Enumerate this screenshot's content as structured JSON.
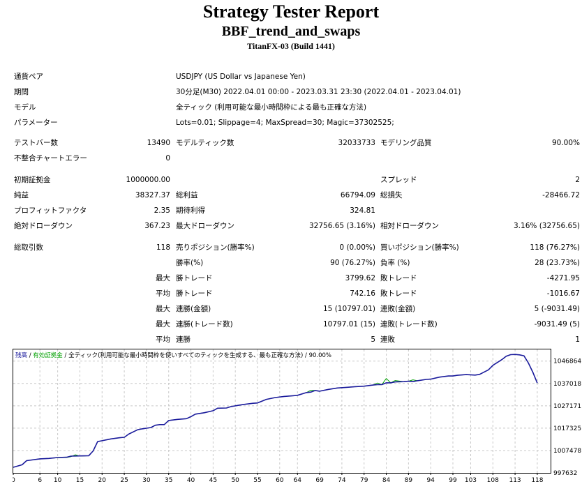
{
  "header": {
    "title": "Strategy Tester Report",
    "subtitle": "BBF_trend_and_swaps",
    "build": "TitanFX-03 (Build 1441)"
  },
  "info": {
    "symbol_label": "通貨ペア",
    "symbol_value": "USDJPY (US Dollar vs Japanese Yen)",
    "period_label": "期間",
    "period_value": "30分足(M30) 2022.04.01 00:00 - 2023.03.31 23:30 (2022.04.01 - 2023.04.01)",
    "model_label": "モデル",
    "model_value": "全ティック (利用可能な最小時間枠による最も正確な方法)",
    "params_label": "パラメーター",
    "params_value": "Lots=0.01; Slippage=4; MaxSpread=30; Magic=37302525;"
  },
  "stats": {
    "bars_label": "テストバー数",
    "bars_value": "13490",
    "ticks_label": "モデルティック数",
    "ticks_value": "32033733",
    "quality_label": "モデリング品質",
    "quality_value": "90.00%",
    "mismatch_label": "不整合チャートエラー",
    "mismatch_value": "0",
    "deposit_label": "初期証拠金",
    "deposit_value": "1000000.00",
    "spread_label": "スプレッド",
    "spread_value": "2",
    "net_label": "純益",
    "net_value": "38327.37",
    "gross_profit_label": "総利益",
    "gross_profit_value": "66794.09",
    "gross_loss_label": "総損失",
    "gross_loss_value": "-28466.72",
    "pf_label": "プロフィットファクタ",
    "pf_value": "2.35",
    "expected_label": "期待利得",
    "expected_value": "324.81",
    "abs_dd_label": "絶対ドローダウン",
    "abs_dd_value": "367.23",
    "max_dd_label": "最大ドローダウン",
    "max_dd_value": "32756.65 (3.16%)",
    "rel_dd_label": "相対ドローダウン",
    "rel_dd_value": "3.16% (32756.65)",
    "total_trades_label": "総取引数",
    "total_trades_value": "118",
    "short_label": "売りポジション(勝率%)",
    "short_value": "0 (0.00%)",
    "long_label": "買いポジション(勝率%)",
    "long_value": "118 (76.27%)",
    "win_rate_label": "勝率(%)",
    "win_rate_value": "90 (76.27%)",
    "loss_rate_label": "負率 (%)",
    "loss_rate_value": "28 (23.73%)",
    "max1": "最大",
    "largest_win_label": "勝トレード",
    "largest_win_value": "3799.62",
    "largest_loss_label": "敗トレード",
    "largest_loss_value": "-4271.95",
    "avg1": "平均",
    "avg_win_label": "勝トレード",
    "avg_win_value": "742.16",
    "avg_loss_label": "敗トレード",
    "avg_loss_value": "-1016.67",
    "max2": "最大",
    "cons_wins_money_label": "連勝(金額)",
    "cons_wins_money_value": "15 (10797.01)",
    "cons_loss_money_label": "連敗(金額)",
    "cons_loss_money_value": "5 (-9031.49)",
    "max3": "最大",
    "cons_profit_label": "連勝(トレード数)",
    "cons_profit_value": "10797.01 (15)",
    "cons_loss_label": "連敗(トレード数)",
    "cons_loss_value": "-9031.49 (5)",
    "avg2": "平均",
    "avg_cons_wins_label": "連勝",
    "avg_cons_wins_value": "5",
    "avg_cons_loss_label": "連敗",
    "avg_cons_loss_value": "1"
  },
  "chart_data": {
    "type": "line",
    "legend": {
      "balance": "残高",
      "sep1": " / ",
      "equity": "有効証拠金",
      "sep2": " / ",
      "model": "全ティック(利用可能な最小時間枠を使いすべてのティックを生成する、最も正確な方法)",
      "sep3": " / ",
      "quality": "90.00%"
    },
    "x_ticks": [
      "0",
      "6",
      "10",
      "15",
      "20",
      "25",
      "30",
      "35",
      "40",
      "45",
      "50",
      "55",
      "60",
      "64",
      "69",
      "74",
      "79",
      "84",
      "89",
      "94",
      "99",
      "103",
      "108",
      "113",
      "118"
    ],
    "y_ticks": [
      "1046864",
      "1037018",
      "1027171",
      "1017325",
      "1007478",
      "997632"
    ],
    "ylim": [
      997632,
      1052000
    ],
    "xlim": [
      0,
      121
    ],
    "colors": {
      "balance": "#1a1a9c",
      "equity": "#00a000",
      "grid": "#c8c8c8"
    },
    "series": [
      {
        "name": "残高",
        "x": [
          0,
          2,
          3,
          6,
          8,
          10,
          12,
          13,
          15,
          17,
          18,
          19,
          20,
          22,
          24,
          25,
          26,
          28,
          29,
          31,
          32,
          33,
          34,
          35,
          37,
          39,
          40,
          41,
          43,
          45,
          46,
          48,
          49,
          51,
          52,
          54,
          55,
          57,
          59,
          61,
          63,
          64,
          66,
          67,
          68,
          69,
          71,
          73,
          75,
          77,
          79,
          81,
          82,
          83,
          84,
          85,
          86,
          88,
          89,
          90,
          91,
          93,
          94,
          96,
          98,
          99,
          100,
          102,
          104,
          105,
          107,
          108,
          110,
          111,
          112,
          113,
          114,
          115,
          116,
          117,
          118
        ],
        "y": [
          1000100,
          1001200,
          1003000,
          1003800,
          1004000,
          1004400,
          1004500,
          1005000,
          1005100,
          1005200,
          1007300,
          1011400,
          1011800,
          1012600,
          1013100,
          1013300,
          1014700,
          1016600,
          1017000,
          1017600,
          1018600,
          1018900,
          1018900,
          1020700,
          1021200,
          1021500,
          1022400,
          1023500,
          1024100,
          1025000,
          1026100,
          1026200,
          1026800,
          1027500,
          1027800,
          1028300,
          1028400,
          1030000,
          1030800,
          1031300,
          1031600,
          1031800,
          1033000,
          1033200,
          1033900,
          1033600,
          1034400,
          1035000,
          1035300,
          1035600,
          1035800,
          1036300,
          1036500,
          1036500,
          1037300,
          1037300,
          1037700,
          1037800,
          1038000,
          1037800,
          1038200,
          1038800,
          1038900,
          1039800,
          1040300,
          1040300,
          1040600,
          1040900,
          1040700,
          1041000,
          1043000,
          1045000,
          1047500,
          1049000,
          1049700,
          1049800,
          1049600,
          1049200,
          1046000,
          1042000,
          1037200
        ]
      },
      {
        "name": "有効証拠金",
        "x": [
          0,
          2,
          3,
          6,
          8,
          10,
          12,
          13,
          14,
          15,
          17,
          18,
          19,
          20,
          22,
          24,
          25,
          26,
          28,
          29,
          31,
          32,
          33,
          34,
          35,
          37,
          39,
          40,
          41,
          43,
          45,
          46,
          48,
          49,
          51,
          52,
          54,
          55,
          57,
          59,
          61,
          63,
          64,
          66,
          67,
          68,
          69,
          71,
          73,
          75,
          77,
          79,
          81,
          82,
          83,
          84,
          85,
          86,
          88,
          89,
          90,
          91,
          93,
          94,
          96,
          98,
          99,
          100,
          102,
          104,
          105,
          107,
          108,
          110,
          111,
          112,
          113,
          114,
          115,
          116,
          117,
          118
        ],
        "y": [
          1000100,
          1001200,
          1003000,
          1003800,
          1004000,
          1004300,
          1004400,
          1004800,
          1005600,
          1005000,
          1005200,
          1007300,
          1011400,
          1011800,
          1012600,
          1013100,
          1013300,
          1014700,
          1016600,
          1017000,
          1017600,
          1018600,
          1018900,
          1018900,
          1020700,
          1021200,
          1021500,
          1022400,
          1023500,
          1024100,
          1025000,
          1026100,
          1026200,
          1026800,
          1027500,
          1027800,
          1028300,
          1028400,
          1030000,
          1030800,
          1031300,
          1031600,
          1031800,
          1033000,
          1034000,
          1033900,
          1033600,
          1034400,
          1035000,
          1035300,
          1035600,
          1035800,
          1036300,
          1037200,
          1036500,
          1039200,
          1037300,
          1038300,
          1037800,
          1038000,
          1038600,
          1038200,
          1038800,
          1038900,
          1039800,
          1040300,
          1040300,
          1040600,
          1040900,
          1040700,
          1041000,
          1043000,
          1045000,
          1047500,
          1049000,
          1049700,
          1049800,
          1049600,
          1049200,
          1046000,
          1042000,
          1037200
        ]
      }
    ]
  }
}
